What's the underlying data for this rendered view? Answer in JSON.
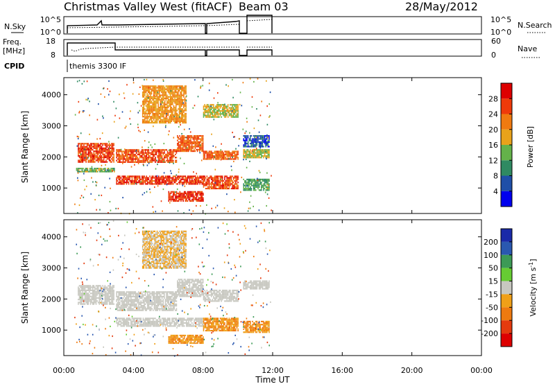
{
  "header": {
    "station": "Christmas Valley West (fitACF)",
    "beam": "Beam 03",
    "date": "28/May/2012"
  },
  "panels": {
    "nsky": {
      "left_label": "N.Sky",
      "right_label": "N.Search",
      "ticks_left": [
        "10^5",
        "10^0"
      ],
      "ticks_right": [
        "10^5",
        "10^0"
      ]
    },
    "freq": {
      "left_label_1": "Freq.",
      "left_label_2": "[MHz]",
      "right_label": "Nave",
      "ticks_left": [
        "18",
        "8"
      ],
      "ticks_right": [
        "60",
        "0"
      ]
    },
    "cpid": {
      "label": "CPID",
      "program": "themis 3300 IF"
    }
  },
  "colors": {
    "power": [
      "#0000ee",
      "#1f4fa8",
      "#2f8a62",
      "#64b24a",
      "#e8a21a",
      "#f07a10",
      "#ee3a0a",
      "#dd0000"
    ],
    "velocity": [
      "#1a2aa8",
      "#2a58b0",
      "#3c9a56",
      "#66cc33",
      "#c8c8c0",
      "#f0a018",
      "#ee7a10",
      "#e43a0e",
      "#dd0000"
    ]
  },
  "chart_data": [
    {
      "type": "heatmap",
      "title": "Power",
      "ylabel": "Slant Range [km]",
      "xlabel": "Time UT",
      "x_ticks": [
        "00:00",
        "04:00",
        "08:00",
        "12:00",
        "16:00",
        "20:00",
        "00:00"
      ],
      "y_ticks": [
        1000,
        2000,
        3000,
        4000
      ],
      "ylim": [
        180,
        4550
      ],
      "xlim_hours": [
        0,
        24
      ],
      "colorbar": {
        "label": "Power [dB]",
        "ticks": [
          4,
          8,
          12,
          16,
          20,
          24,
          28
        ],
        "range": [
          0,
          32
        ]
      },
      "echo_regions": [
        {
          "t_start": 0.8,
          "t_end": 2.9,
          "r_start": 1820,
          "r_end": 2450,
          "value": 26
        },
        {
          "t_start": 0.7,
          "t_end": 2.9,
          "r_start": 1550,
          "r_end": 1650,
          "value": 14
        },
        {
          "t_start": 3.0,
          "t_end": 8.0,
          "r_start": 1150,
          "r_end": 1400,
          "value": 27
        },
        {
          "t_start": 3.0,
          "t_end": 6.5,
          "r_start": 1850,
          "r_end": 2250,
          "value": 25
        },
        {
          "t_start": 6.5,
          "t_end": 8.0,
          "r_start": 2200,
          "r_end": 2700,
          "value": 24
        },
        {
          "t_start": 6.0,
          "t_end": 8.0,
          "r_start": 600,
          "r_end": 900,
          "value": 27
        },
        {
          "t_start": 8.0,
          "t_end": 10.0,
          "r_start": 1000,
          "r_end": 1400,
          "value": 26
        },
        {
          "t_start": 8.0,
          "t_end": 10.0,
          "r_start": 1950,
          "r_end": 2200,
          "value": 24
        },
        {
          "t_start": 8.0,
          "t_end": 10.0,
          "r_start": 3300,
          "r_end": 3700,
          "value": 16
        },
        {
          "t_start": 10.3,
          "t_end": 11.8,
          "r_start": 950,
          "r_end": 1300,
          "value": 12
        },
        {
          "t_start": 10.3,
          "t_end": 11.8,
          "r_start": 2000,
          "r_end": 2250,
          "value": 16
        },
        {
          "t_start": 10.3,
          "t_end": 11.8,
          "r_start": 2350,
          "r_end": 2700,
          "value": 6
        },
        {
          "t_start": 4.5,
          "t_end": 7.0,
          "r_start": 3100,
          "r_end": 4300,
          "value": 20
        }
      ]
    },
    {
      "type": "heatmap",
      "title": "Velocity",
      "ylabel": "Slant Range [km]",
      "xlabel": "Time UT",
      "x_ticks": [
        "00:00",
        "04:00",
        "08:00",
        "12:00",
        "16:00",
        "20:00",
        "00:00"
      ],
      "y_ticks": [
        1000,
        2000,
        3000,
        4000
      ],
      "ylim": [
        180,
        4550
      ],
      "xlim_hours": [
        0,
        24
      ],
      "colorbar": {
        "label": "Velocity [m s^-1]",
        "ticks": [
          200,
          100,
          50,
          15,
          -15,
          -50,
          -100,
          -200
        ]
      },
      "echo_regions": [
        {
          "t_start": 0.8,
          "t_end": 2.9,
          "r_start": 1850,
          "r_end": 2450,
          "value": 0
        },
        {
          "t_start": 3.0,
          "t_end": 6.5,
          "r_start": 1650,
          "r_end": 2250,
          "value": 0
        },
        {
          "t_start": 6.5,
          "t_end": 8.0,
          "r_start": 2100,
          "r_end": 2650,
          "value": 0
        },
        {
          "t_start": 3.0,
          "t_end": 8.0,
          "r_start": 1150,
          "r_end": 1400,
          "value": 0
        },
        {
          "t_start": 6.0,
          "t_end": 8.0,
          "r_start": 600,
          "r_end": 850,
          "value": -50
        },
        {
          "t_start": 8.0,
          "t_end": 10.0,
          "r_start": 1000,
          "r_end": 1400,
          "value": -50
        },
        {
          "t_start": 8.0,
          "t_end": 10.0,
          "r_start": 1950,
          "r_end": 2300,
          "value": 0
        },
        {
          "t_start": 10.3,
          "t_end": 11.8,
          "r_start": 950,
          "r_end": 1300,
          "value": -50
        },
        {
          "t_start": 10.3,
          "t_end": 11.8,
          "r_start": 2350,
          "r_end": 2600,
          "value": 0
        },
        {
          "t_start": 4.5,
          "t_end": 7.0,
          "r_start": 3000,
          "r_end": 4200,
          "value": -15
        }
      ]
    }
  ]
}
